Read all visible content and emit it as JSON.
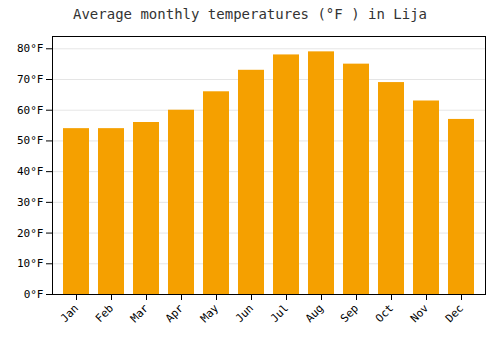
{
  "chart_data": {
    "type": "bar",
    "title": "Average monthly temperatures (°F ) in Lija",
    "categories": [
      "Jan",
      "Feb",
      "Mar",
      "Apr",
      "May",
      "Jun",
      "Jul",
      "Aug",
      "Sep",
      "Oct",
      "Nov",
      "Dec"
    ],
    "values": [
      54,
      54,
      56,
      60,
      66,
      73,
      78,
      79,
      75,
      69,
      63,
      57
    ],
    "color": "#F5A000",
    "ylim": [
      0,
      84
    ],
    "yticks": [
      {
        "value": 0,
        "label": "0°F"
      },
      {
        "value": 10,
        "label": "10°F"
      },
      {
        "value": 20,
        "label": "20°F"
      },
      {
        "value": 30,
        "label": "30°F"
      },
      {
        "value": 40,
        "label": "40°F"
      },
      {
        "value": 50,
        "label": "50°F"
      },
      {
        "value": 60,
        "label": "60°F"
      },
      {
        "value": 70,
        "label": "70°F"
      },
      {
        "value": 80,
        "label": "80°F"
      }
    ],
    "grid": true
  }
}
